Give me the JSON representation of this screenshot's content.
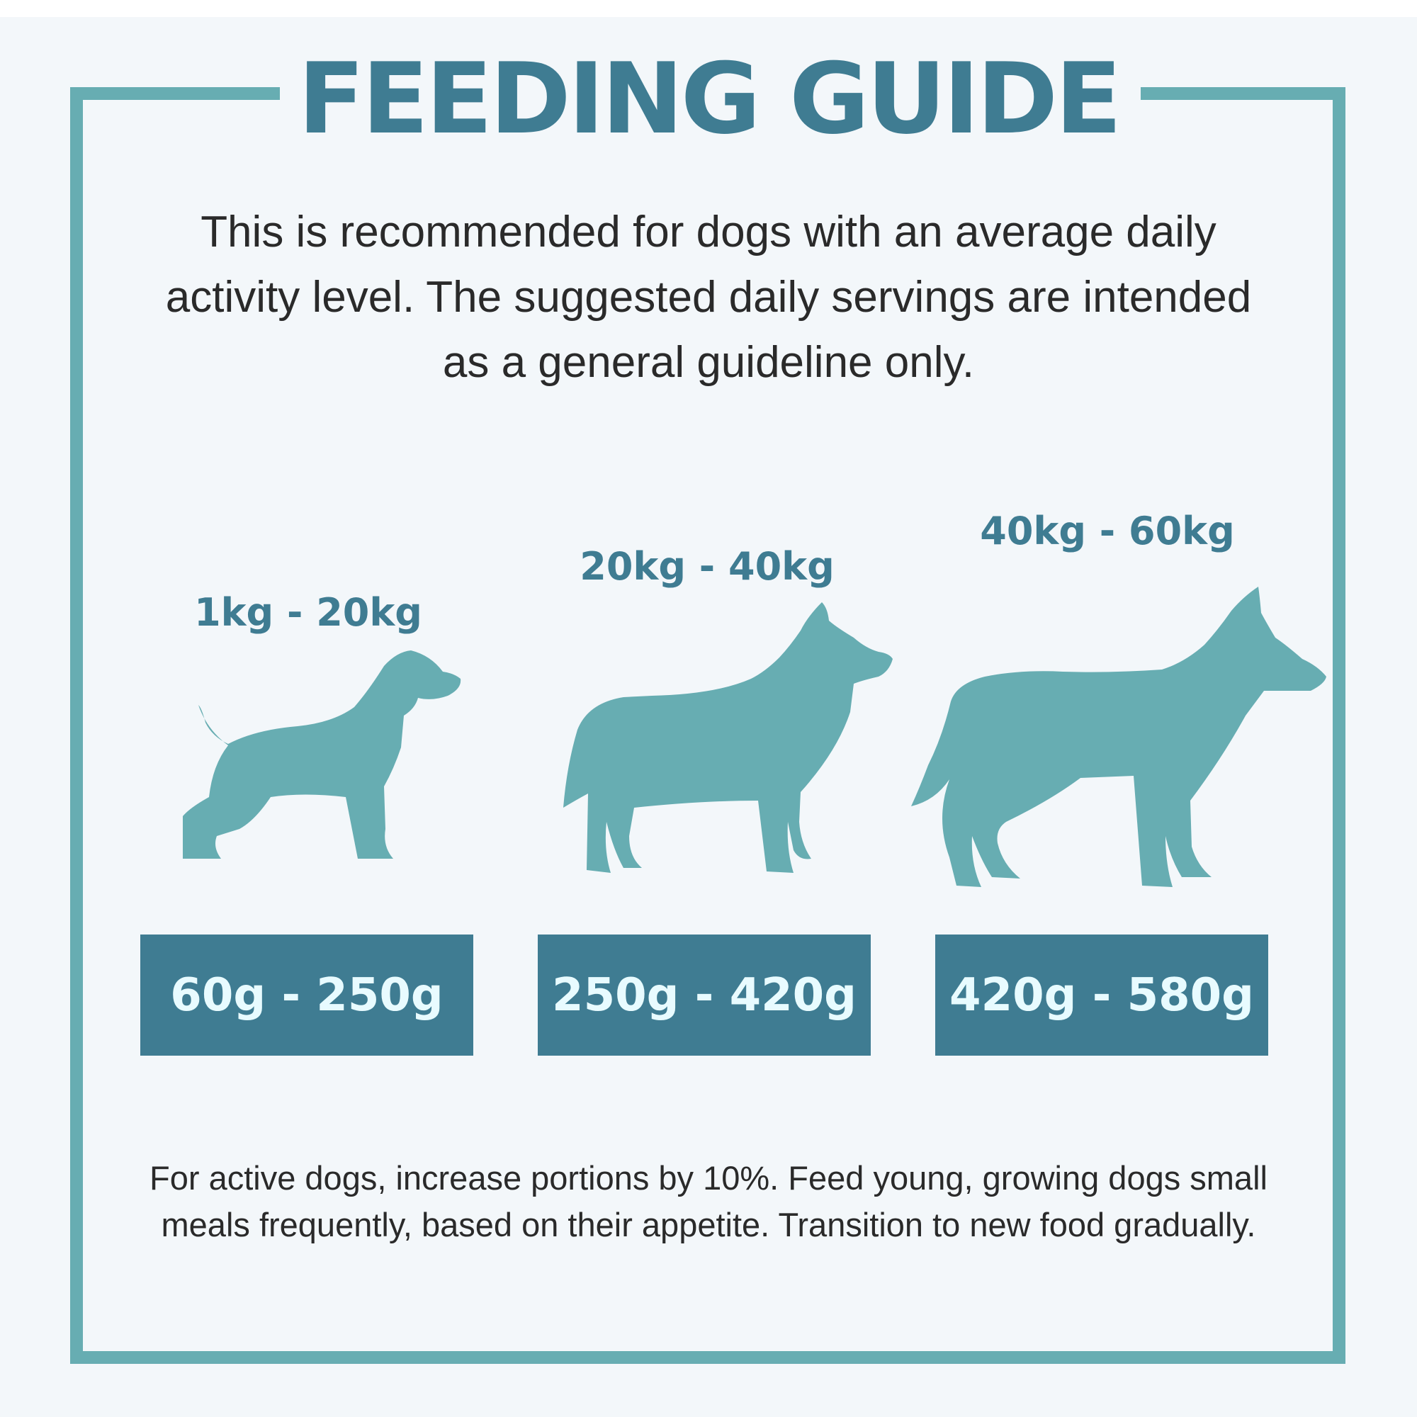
{
  "title": "FEEDING GUIDE",
  "intro": "This is recommended for dogs with an average daily activity level. The suggested daily servings are intended as a general guideline only.",
  "sizes": [
    {
      "weight": "1kg - 20kg",
      "portion": "60g - 250g",
      "icon": "small-dog-icon"
    },
    {
      "weight": "20kg - 40kg",
      "portion": "250g - 420g",
      "icon": "medium-dog-icon"
    },
    {
      "weight": "40kg - 60kg",
      "portion": "420g - 580g",
      "icon": "large-dog-icon"
    }
  ],
  "footer": "For active dogs, increase portions by 10%. Feed young, growing dogs small meals frequently, based on their appetite. Transition to new food gradually.",
  "colors": {
    "primary": "#3f7c92",
    "accent": "#67adb2",
    "background": "#f3f7fa",
    "portion_text": "#e8fbff"
  }
}
